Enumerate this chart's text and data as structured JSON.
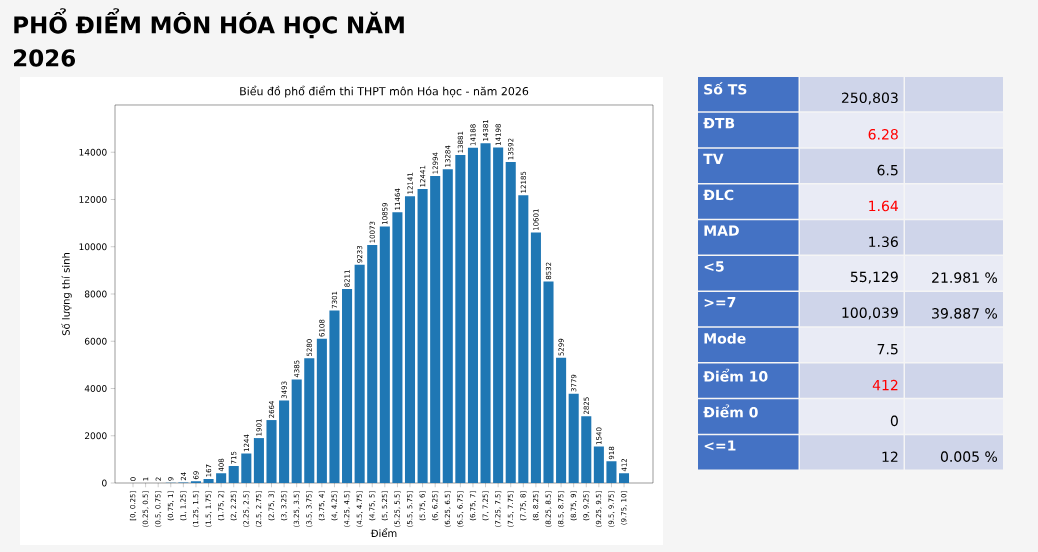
{
  "chart_data": [
    {
      "type": "bar",
      "title": "Biểu đồ phổ điểm thi THPT môn Hóa học - năm 2026",
      "annotations": [
        "PHỔ ĐIỂM MÔN HÓA HỌC NĂM 2026"
      ],
      "xlabel": "Điểm",
      "ylabel": "Số lượng thí sinh",
      "categories": [
        "[0, 0.25]",
        "(0.25, 0.5]",
        "(0.5, 0.75]",
        "(0.75, 1]",
        "(1, 1.25]",
        "(1.25, 1.5]",
        "(1.5, 1.75]",
        "(1.75, 2]",
        "(2, 2.25]",
        "(2.25, 2.5]",
        "(2.5, 2.75]",
        "(2.75, 3]",
        "(3, 3.25]",
        "(3.25, 3.5]",
        "(3.5, 3.75]",
        "(3.75, 4]",
        "(4, 4.25]",
        "(4.25, 4.5]",
        "(4.5, 4.75]",
        "(4.75, 5]",
        "(5, 5.25]",
        "(5.25, 5.5]",
        "(5.5, 5.75]",
        "(5.75, 6]",
        "(6, 6.25]",
        "(6.25, 6.5]",
        "(6.5, 6.75]",
        "(6.75, 7]",
        "(7, 7.25]",
        "(7.25, 7.5]",
        "(7.5, 7.75]",
        "(7.75, 8]",
        "(8, 8.25]",
        "(8.25, 8.5]",
        "(8.5, 8.75]",
        "(8.75, 9]",
        "(9, 9.25]",
        "(9.25, 9.5]",
        "(9.5, 9.75]",
        "(9.75, 10]"
      ],
      "values": [
        0,
        1,
        2,
        9,
        24,
        69,
        167,
        408,
        715,
        1244,
        1901,
        2664,
        3493,
        4385,
        5280,
        6108,
        7301,
        8211,
        9233,
        10073,
        10859,
        11464,
        12141,
        12441,
        12994,
        13284,
        13881,
        14188,
        14381,
        14198,
        13592,
        12185,
        10601,
        8532,
        5299,
        3779,
        2825,
        1540,
        918,
        412
      ],
      "color": "#1f77b4",
      "ylim": [
        0,
        16000
      ],
      "yticks": [
        0,
        2000,
        4000,
        6000,
        8000,
        10000,
        12000,
        14000
      ],
      "data_labels": true
    },
    {
      "type": "other",
      "y_categories": [
        "Số TS",
        "ĐTB",
        "TV",
        "ĐLC",
        "MAD",
        "<5",
        ">=7",
        "Mode",
        "Điểm 10",
        "Điểm 0",
        "<=1"
      ],
      "cell_labels": [
        [
          "250,803",
          null
        ],
        [
          "6.28",
          null
        ],
        [
          "6.5",
          null
        ],
        [
          "1.64",
          null
        ],
        [
          "1.36",
          null
        ],
        [
          "55,129",
          "21.981 %"
        ],
        [
          "100,039",
          "39.887 %"
        ],
        [
          "7.5",
          null
        ],
        [
          "412",
          null
        ],
        [
          "0",
          null
        ],
        [
          "12",
          "0.005 %"
        ]
      ],
      "colors": [
        "#000000",
        "#ff0000",
        "#000000",
        "#ff0000",
        "#000000",
        "#000000",
        "#000000",
        "#000000",
        "#ff0000",
        "#000000",
        "#000000"
      ]
    }
  ]
}
